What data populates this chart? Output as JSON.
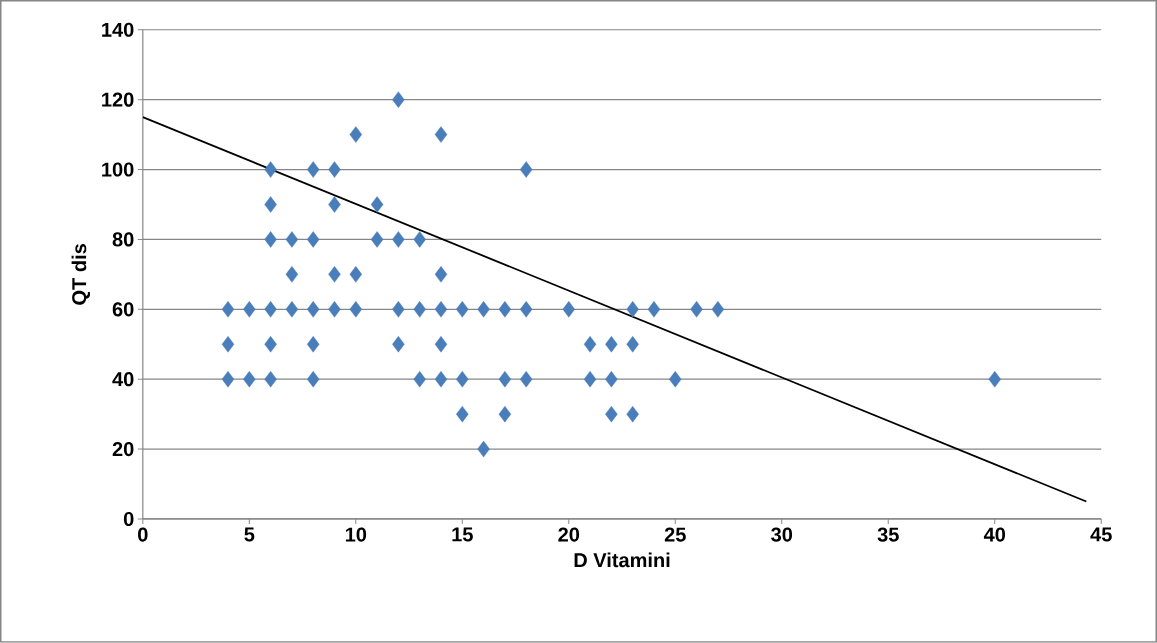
{
  "chart_data": {
    "type": "scatter",
    "xlabel": "D Vitamini",
    "ylabel": "QT dis",
    "xlim": [
      0,
      45
    ],
    "xticks": [
      0,
      5,
      10,
      15,
      20,
      25,
      30,
      35,
      40,
      45
    ],
    "ylim": [
      0,
      140
    ],
    "yticks": [
      0,
      20,
      40,
      60,
      80,
      100,
      120,
      140
    ],
    "grid": "y",
    "series": [
      {
        "marker": "diamond",
        "color": "#4a7ebb",
        "x": [
          4,
          4,
          4,
          5,
          5,
          6,
          6,
          6,
          6,
          6,
          6,
          7,
          7,
          7,
          8,
          8,
          8,
          8,
          8,
          9,
          9,
          9,
          9,
          10,
          10,
          10,
          11,
          11,
          12,
          12,
          12,
          12,
          13,
          13,
          13,
          14,
          14,
          14,
          14,
          14,
          15,
          15,
          15,
          16,
          16,
          17,
          17,
          17,
          18,
          18,
          18,
          20,
          21,
          21,
          22,
          22,
          22,
          23,
          23,
          23,
          24,
          25,
          26,
          27,
          40
        ],
        "values": [
          60,
          50,
          40,
          60,
          40,
          100,
          90,
          80,
          60,
          50,
          40,
          80,
          70,
          60,
          100,
          80,
          60,
          50,
          40,
          100,
          90,
          70,
          60,
          110,
          70,
          60,
          90,
          80,
          120,
          80,
          60,
          50,
          80,
          60,
          40,
          110,
          70,
          60,
          50,
          40,
          60,
          40,
          30,
          60,
          20,
          60,
          40,
          30,
          100,
          60,
          40,
          60,
          50,
          40,
          50,
          40,
          30,
          60,
          50,
          30,
          60,
          40,
          60,
          60,
          40
        ]
      },
      {
        "type": "line",
        "marker": "none",
        "line_style": "solid",
        "color": "#000000",
        "x": [
          0,
          44.3
        ],
        "values": [
          115,
          5
        ]
      }
    ]
  }
}
